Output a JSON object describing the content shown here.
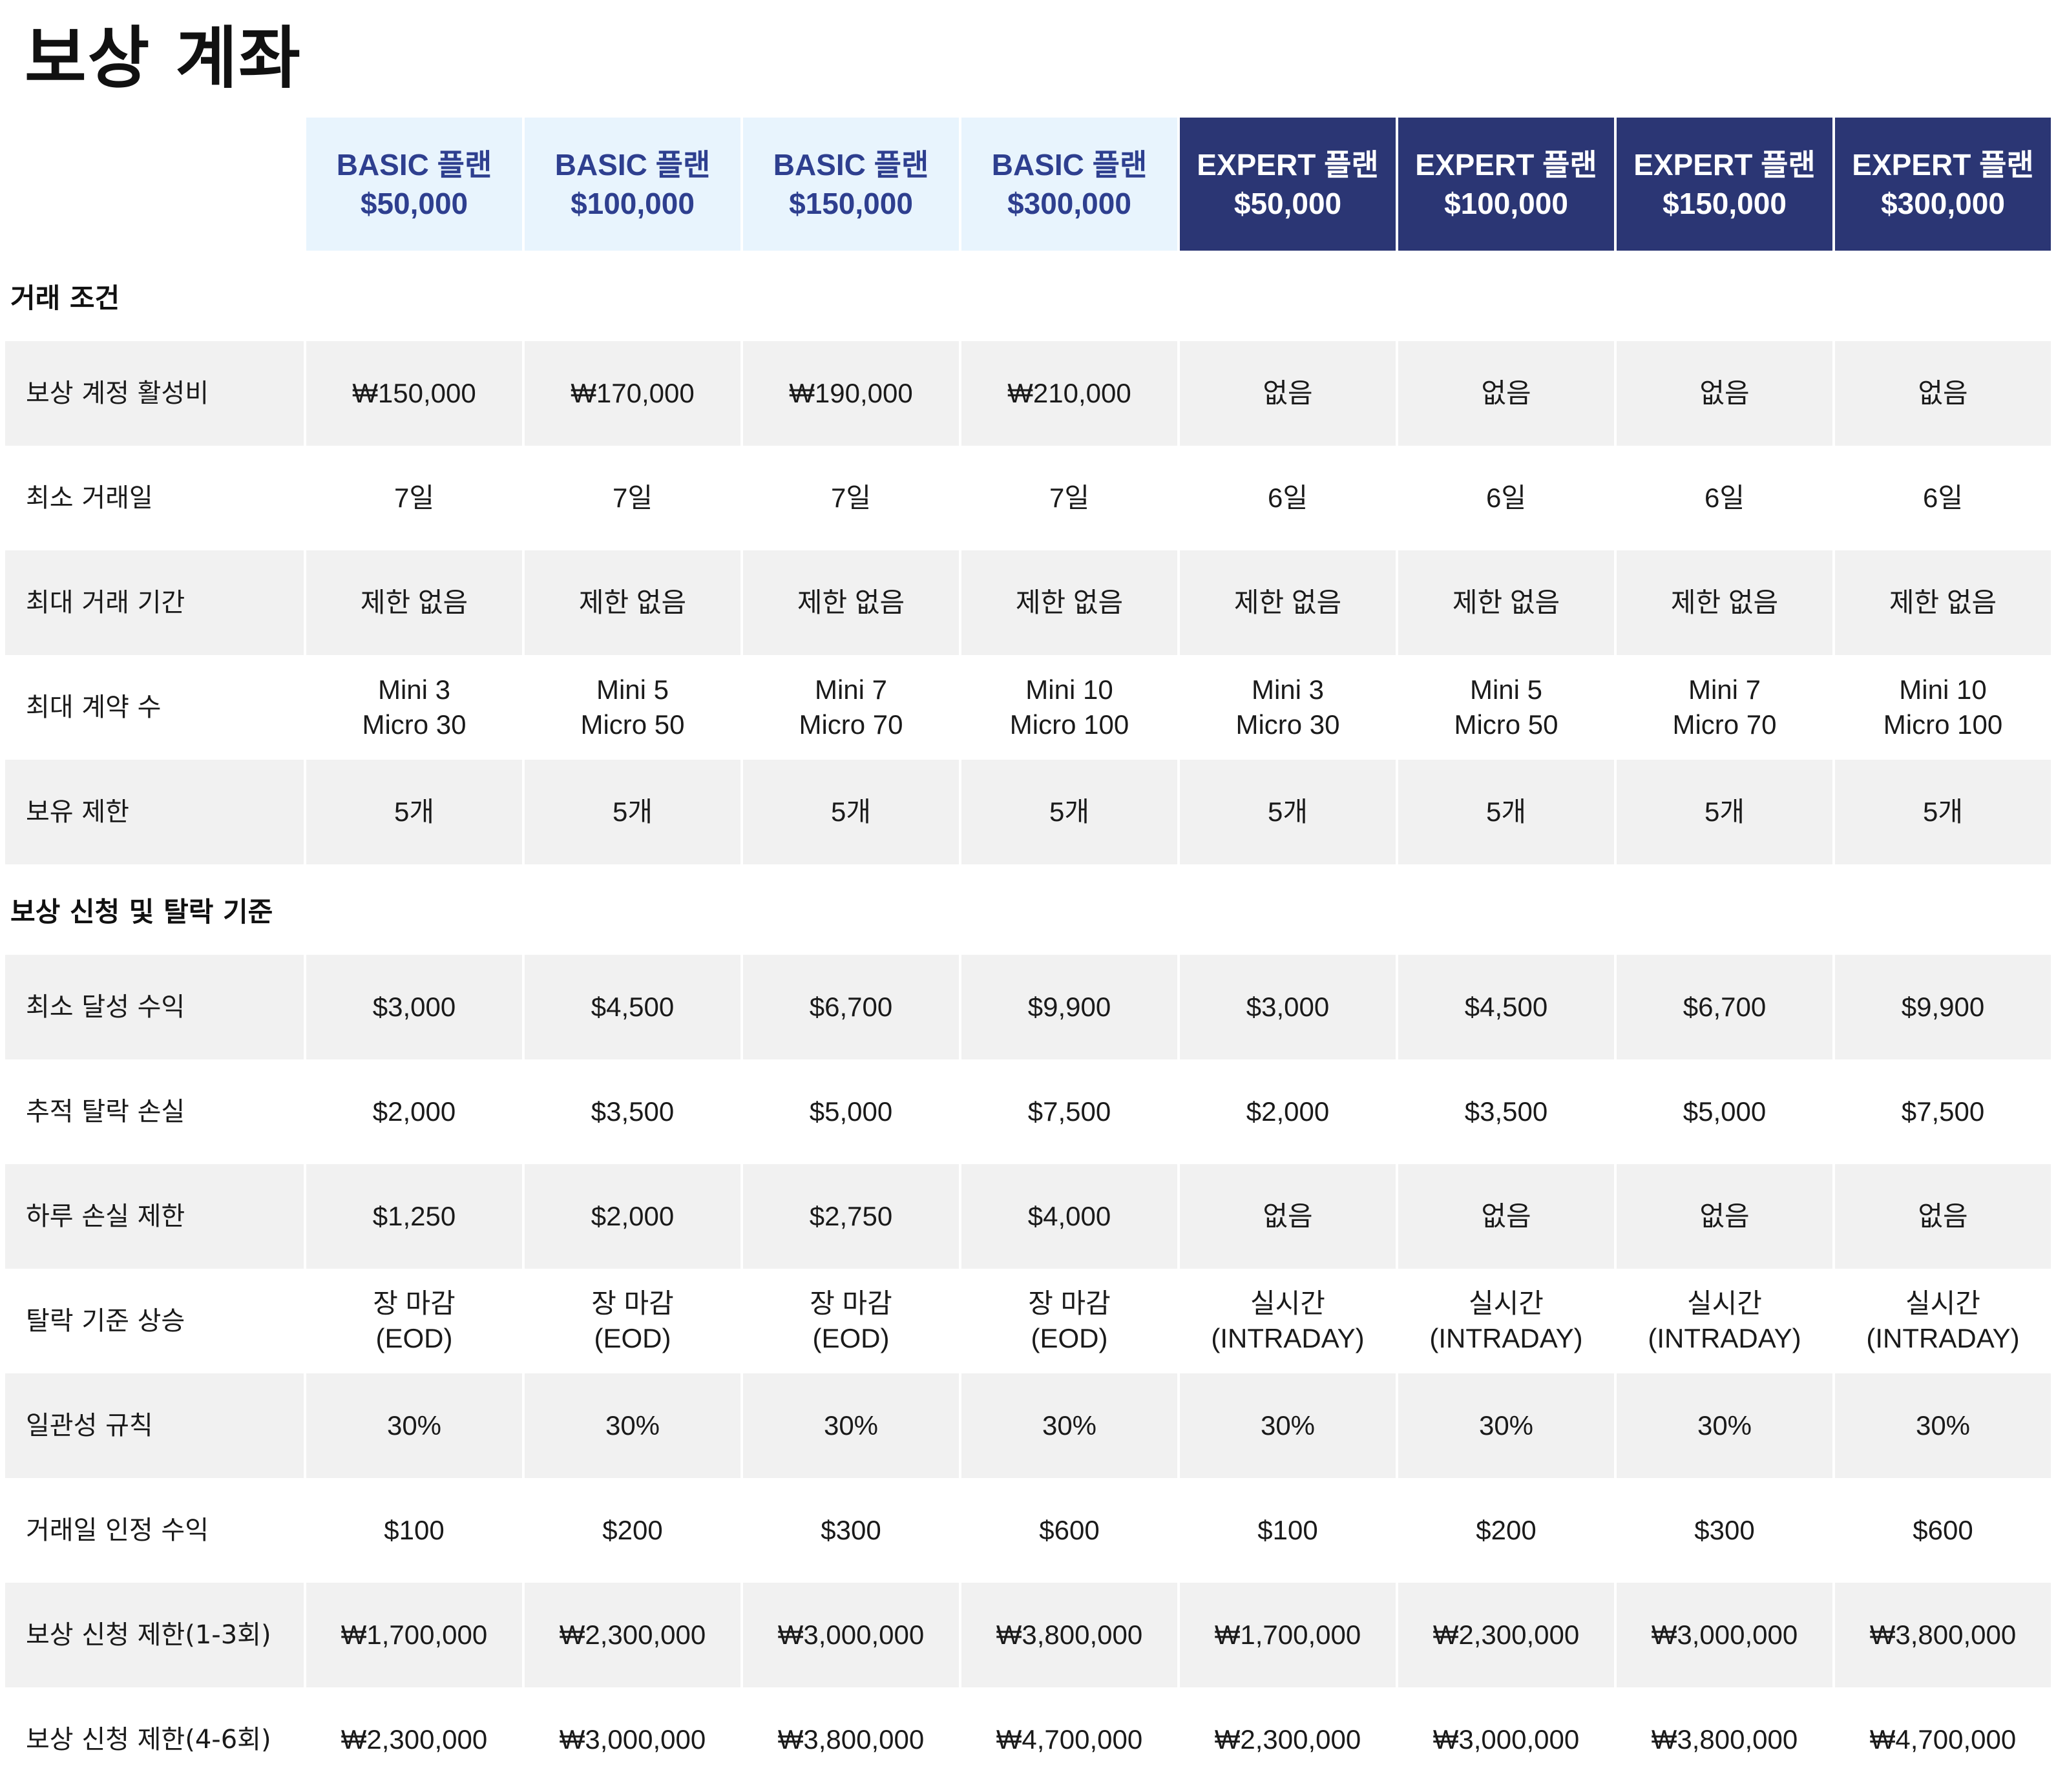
{
  "title": "보상 계좌",
  "plans": [
    {
      "type": "basic",
      "name": "BASIC 플랜",
      "amount": "$50,000"
    },
    {
      "type": "basic",
      "name": "BASIC 플랜",
      "amount": "$100,000"
    },
    {
      "type": "basic",
      "name": "BASIC 플랜",
      "amount": "$150,000"
    },
    {
      "type": "basic",
      "name": "BASIC 플랜",
      "amount": "$300,000"
    },
    {
      "type": "expert",
      "name": "EXPERT 플랜",
      "amount": "$50,000"
    },
    {
      "type": "expert",
      "name": "EXPERT 플랜",
      "amount": "$100,000"
    },
    {
      "type": "expert",
      "name": "EXPERT 플랜",
      "amount": "$150,000"
    },
    {
      "type": "expert",
      "name": "EXPERT 플랜",
      "amount": "$300,000"
    }
  ],
  "sections": [
    {
      "title": "거래 조건",
      "rows": [
        {
          "label": "보상 계정 활성비",
          "values": [
            "₩150,000",
            "₩170,000",
            "₩190,000",
            "₩210,000",
            "없음",
            "없음",
            "없음",
            "없음"
          ]
        },
        {
          "label": "최소 거래일",
          "values": [
            "7일",
            "7일",
            "7일",
            "7일",
            "6일",
            "6일",
            "6일",
            "6일"
          ]
        },
        {
          "label": "최대 거래 기간",
          "values": [
            "제한 없음",
            "제한 없음",
            "제한 없음",
            "제한 없음",
            "제한 없음",
            "제한 없음",
            "제한 없음",
            "제한 없음"
          ]
        },
        {
          "label": "최대 계약 수",
          "values": [
            [
              "Mini 3",
              "Micro 30"
            ],
            [
              "Mini 5",
              "Micro 50"
            ],
            [
              "Mini 7",
              "Micro 70"
            ],
            [
              "Mini 10",
              "Micro 100"
            ],
            [
              "Mini 3",
              "Micro 30"
            ],
            [
              "Mini 5",
              "Micro 50"
            ],
            [
              "Mini 7",
              "Micro 70"
            ],
            [
              "Mini 10",
              "Micro 100"
            ]
          ]
        },
        {
          "label": "보유 제한",
          "values": [
            "5개",
            "5개",
            "5개",
            "5개",
            "5개",
            "5개",
            "5개",
            "5개"
          ]
        }
      ]
    },
    {
      "title": "보상 신청 및 탈락 기준",
      "rows": [
        {
          "label": "최소 달성 수익",
          "values": [
            "$3,000",
            "$4,500",
            "$6,700",
            "$9,900",
            "$3,000",
            "$4,500",
            "$6,700",
            "$9,900"
          ]
        },
        {
          "label": "추적 탈락 손실",
          "values": [
            "$2,000",
            "$3,500",
            "$5,000",
            "$7,500",
            "$2,000",
            "$3,500",
            "$5,000",
            "$7,500"
          ]
        },
        {
          "label": "하루 손실 제한",
          "values": [
            "$1,250",
            "$2,000",
            "$2,750",
            "$4,000",
            "없음",
            "없음",
            "없음",
            "없음"
          ]
        },
        {
          "label": "탈락 기준 상승",
          "values": [
            [
              "장 마감",
              "(EOD)"
            ],
            [
              "장 마감",
              "(EOD)"
            ],
            [
              "장 마감",
              "(EOD)"
            ],
            [
              "장 마감",
              "(EOD)"
            ],
            [
              "실시간",
              "(INTRADAY)"
            ],
            [
              "실시간",
              "(INTRADAY)"
            ],
            [
              "실시간",
              "(INTRADAY)"
            ],
            [
              "실시간",
              "(INTRADAY)"
            ]
          ]
        },
        {
          "label": "일관성 규칙",
          "values": [
            "30%",
            "30%",
            "30%",
            "30%",
            "30%",
            "30%",
            "30%",
            "30%"
          ]
        },
        {
          "label": "거래일 인정 수익",
          "values": [
            "$100",
            "$200",
            "$300",
            "$600",
            "$100",
            "$200",
            "$300",
            "$600"
          ]
        },
        {
          "label": "보상 신청 제한(1-3회)",
          "values": [
            "₩1,700,000",
            "₩2,300,000",
            "₩3,000,000",
            "₩3,800,000",
            "₩1,700,000",
            "₩2,300,000",
            "₩3,000,000",
            "₩3,800,000"
          ]
        },
        {
          "label": "보상 신청 제한(4-6회)",
          "values": [
            "₩2,300,000",
            "₩3,000,000",
            "₩3,800,000",
            "₩4,700,000",
            "₩2,300,000",
            "₩3,000,000",
            "₩3,800,000",
            "₩4,700,000"
          ]
        }
      ]
    }
  ]
}
